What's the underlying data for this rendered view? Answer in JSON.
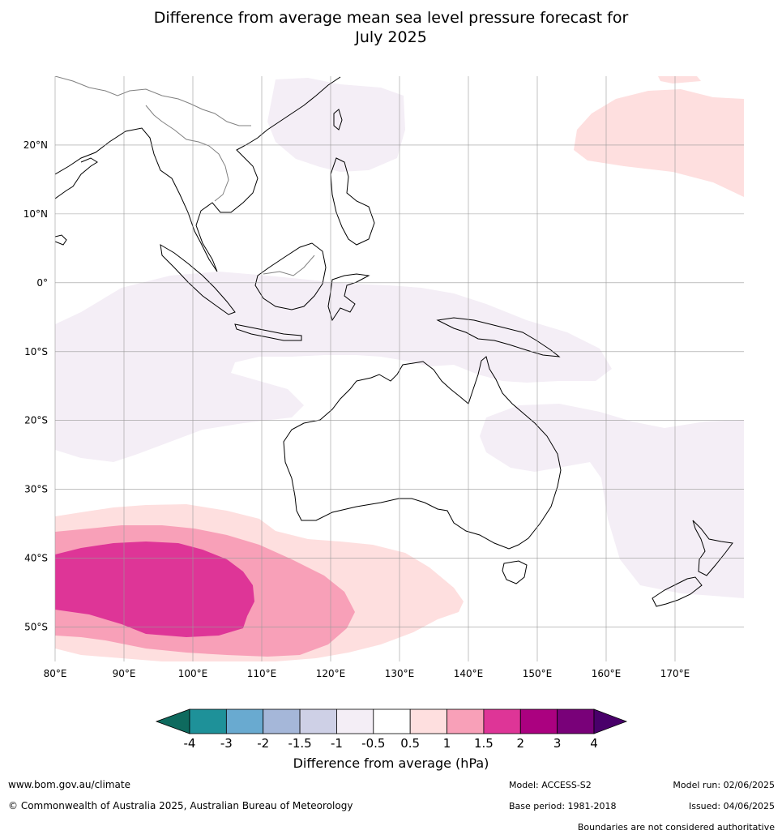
{
  "title": {
    "line1": "Difference from average mean sea level pressure forecast for",
    "line2": "July 2025"
  },
  "map": {
    "lon_min": 80,
    "lon_max": 180,
    "lat_min": -55,
    "lat_max": 30,
    "lat_ticks": [
      {
        "value": 20,
        "label": "20°N"
      },
      {
        "value": 10,
        "label": "10°N"
      },
      {
        "value": 0,
        "label": "0°"
      },
      {
        "value": -10,
        "label": "10°S"
      },
      {
        "value": -20,
        "label": "20°S"
      },
      {
        "value": -30,
        "label": "30°S"
      },
      {
        "value": -40,
        "label": "40°S"
      },
      {
        "value": -50,
        "label": "50°S"
      }
    ],
    "lon_ticks": [
      {
        "value": 80,
        "label": "80°E"
      },
      {
        "value": 90,
        "label": "90°E"
      },
      {
        "value": 100,
        "label": "100°E"
      },
      {
        "value": 110,
        "label": "110°E"
      },
      {
        "value": 120,
        "label": "120°E"
      },
      {
        "value": 130,
        "label": "130°E"
      },
      {
        "value": 140,
        "label": "140°E"
      },
      {
        "value": 150,
        "label": "150°E"
      },
      {
        "value": 160,
        "label": "160°E"
      },
      {
        "value": 170,
        "label": "170°E"
      }
    ]
  },
  "colorbar": {
    "label": "Difference from average (hPa)",
    "ticks": [
      "-4",
      "-3",
      "-2",
      "-1.5",
      "-1",
      "-0.5",
      "0.5",
      "1",
      "1.5",
      "2",
      "3",
      "4"
    ],
    "colors": [
      "#0e6a5e",
      "#1e9199",
      "#69aad0",
      "#a5b7d9",
      "#ced0e6",
      "#f4eef6",
      "#ffffff",
      "#fedfdf",
      "#f8a0b8",
      "#de3597",
      "#ab0180",
      "#790179",
      "#49006a"
    ]
  },
  "colors": {
    "light_lavender": "#f4eef6",
    "light_pink": "#fedfdf",
    "pink": "#f8a0b8",
    "magenta": "#de3597"
  },
  "footer": {
    "url": "www.bom.gov.au/climate",
    "copyright": "© Commonwealth of Australia 2025, Australian Bureau of Meteorology",
    "model": "Model: ACCESS-S2",
    "base_period": "Base period: 1981-2018",
    "model_run": "Model run: 02/06/2025",
    "issued": "Issued: 04/06/2025",
    "disclaimer": "Boundaries are not considered authoritative"
  }
}
